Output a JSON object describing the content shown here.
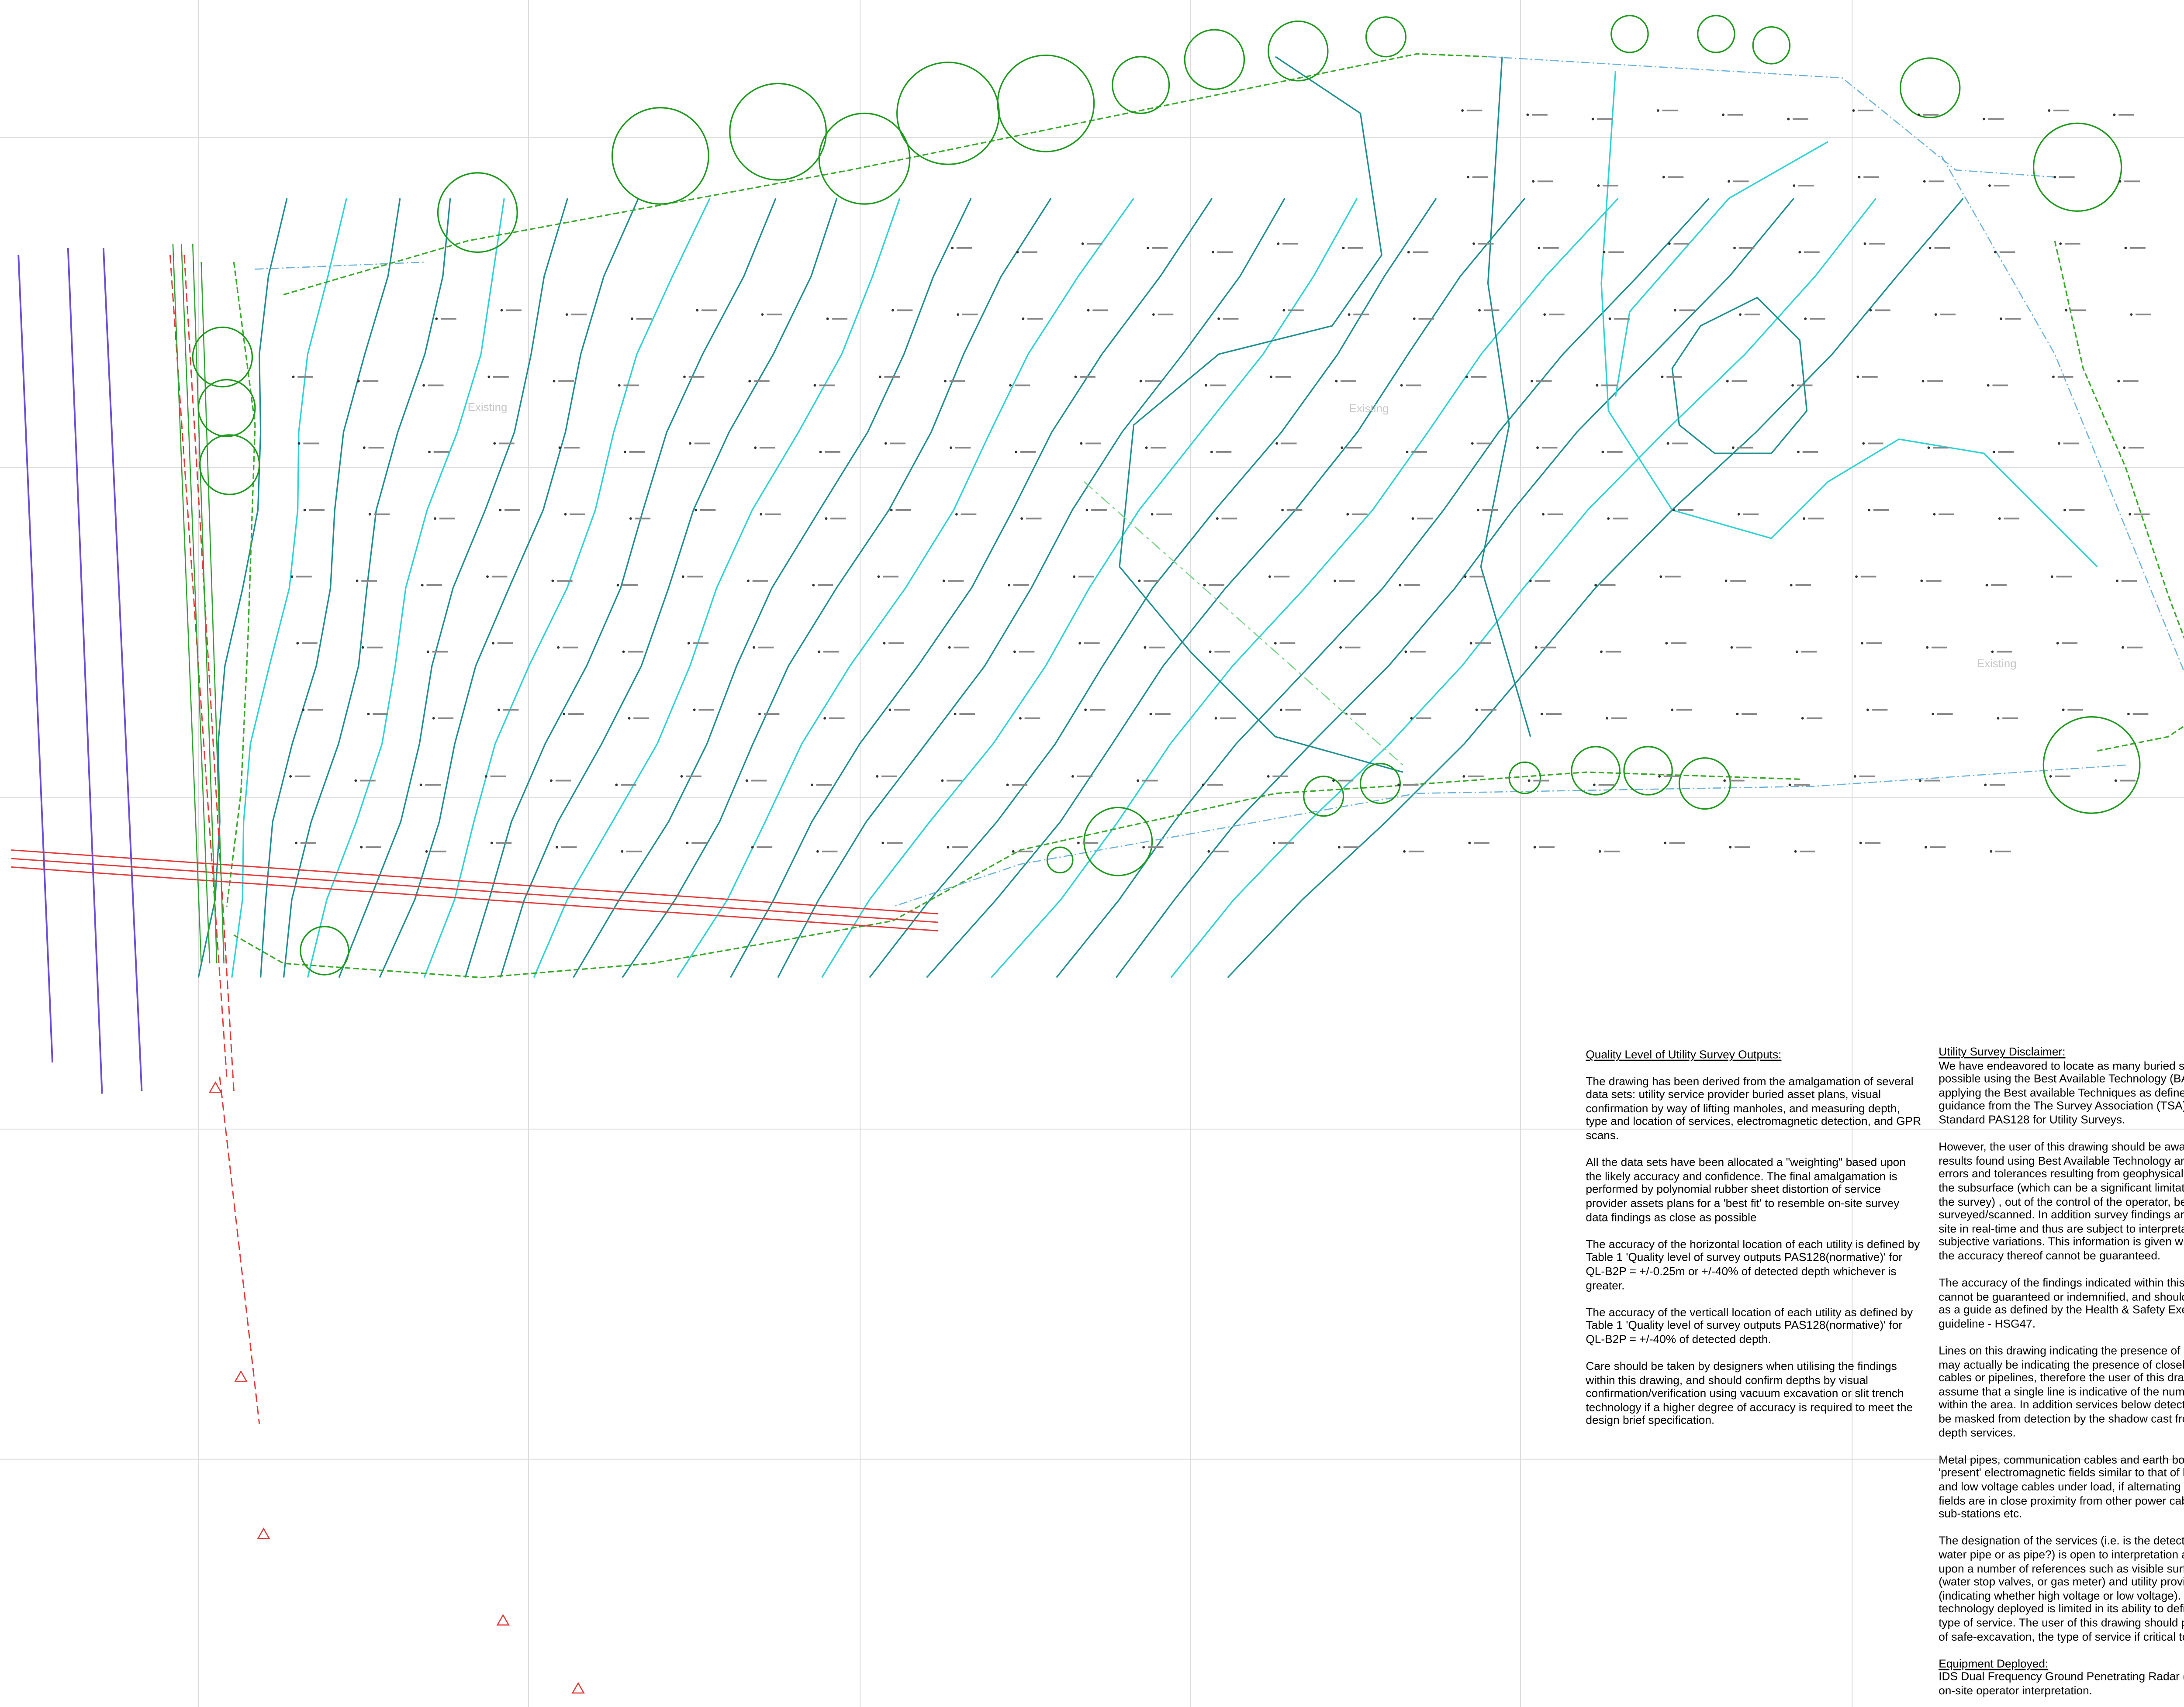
{
  "map_labels": [
    "Existing",
    "Existing",
    "Existing"
  ],
  "quality_notes": {
    "title": "Quality Level of Utility Survey Outputs:",
    "paragraphs": [
      "The drawing has been derived from the amalgamation of several data sets: utility service provider buried asset plans, visual confirmation by way of lifting manholes, and measuring depth, type and location of services, electromagnetic detection, and GPR scans.",
      "All the data sets have been allocated a \"weighting\" based upon the likely accuracy and confidence. The final amalgamation is performed by polynomial rubber sheet distortion of service provider assets plans for a 'best fit' to resemble on-site survey data findings as close as possible",
      "The accuracy of the horizontal location of each utility is defined by Table 1 'Quality level of survey outputs PAS128(normative)' for QL-B2P = +/-0.25m or +/-40% of detected depth  whichever is greater.",
      "The accuracy of the verticall location of each utility as defined by Table 1 'Quality level of survey outputs PAS128(normative)' for QL-B2P = +/-40% of detected depth.",
      "Care should be taken by designers when utilising the findings within this drawing, and should confirm depths by visual confirmation/verification using vacuum excavation or slit trench technology if a higher degree of accuracy is required to meet the design brief specification."
    ]
  },
  "disclaimer": {
    "title": "Utility Survey Disclaimer:",
    "paragraphs": [
      [
        "We have endeavored to locate as many buried services",
        "possible using the Best Available Technology (BAT) an",
        "applying the Best available Techniques as defined unde",
        "guidance from the The Survey Association (TSA) and th",
        "Standard PAS128 for Utility Surveys."
      ],
      [
        "However, the user of this drawing should be aware that",
        "results found using Best Available Technology are subj",
        "errors and tolerances resulting from geophysical proper",
        "the subsurface (which can be a significant limitation/inh",
        "the survey) , out of the control of the operator, being",
        "surveyed/scanned. In addition survey findings are interp",
        "site in real-time and thus are subject to interpretative an",
        "subjective variations. This information is given without w",
        "the accuracy thereof cannot be guaranteed."
      ],
      [
        "The accuracy of the findings indicated within this drawi",
        "cannot be guaranteed or indemnified, and should only b",
        "as a guide as defined by the Health & Safety Executive",
        "guideline - HSG47."
      ],
      [
        "Lines on this drawing indicating the presence of buried",
        "may actually be indicating the presence of closely bund",
        "cables or pipelines, therefore the user of this drawing s",
        "assume that a single line is indicative of the number of",
        "within the area. In addition services below detected utili",
        "be masked from detection by the shadow cast from sha",
        "depth services."
      ],
      [
        "Metal pipes, communication cables and earth bonds ca",
        "'present' electromagnetic fields similar to that of high vo",
        "and low voltage cables under load, if alternating electro",
        "fields are in close proximity from other power cables or",
        "sub-stations etc."
      ],
      [
        "The designation of the services (i.e. is the detected serv",
        "water pipe or as pipe?) is open to interpretation and is b",
        "upon a number of references such as visible surface fea",
        "(water stop valves, or gas meter) and utility provider rec",
        "(indicating whether high voltage or low voltage). The be",
        "technology deployed is limited in its ability to define the",
        "type of service. The user of this drawing should prove, b",
        "of safe-excavation, the type of service if critical to the de"
      ]
    ]
  },
  "equipment": {
    "title": "Equipment Deployed:",
    "lines": [
      "IDS Dual Frequency Ground Penetrating Radar (GPR)",
      "on-site operator interpretation."
    ]
  }
}
